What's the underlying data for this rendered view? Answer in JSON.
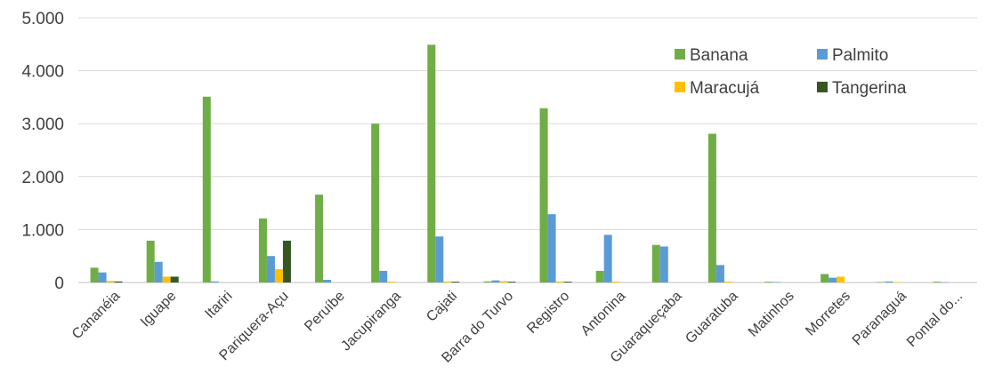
{
  "chart_data": {
    "type": "bar",
    "categories": [
      "Cananéia",
      "Iguape",
      "Itariri",
      "Pariquera-Açu",
      "Peruíbe",
      "Jacupiranga",
      "Cajati",
      "Barra do Turvo",
      "Registro",
      "Antonina",
      "Guaraqueçaba",
      "Guaratuba",
      "Matinhos",
      "Morretes",
      "Paranaguá",
      "Pontal do..."
    ],
    "series": [
      {
        "name": "Banana",
        "color": "#70ad47",
        "values": [
          280,
          790,
          3510,
          1210,
          1660,
          3000,
          4490,
          20,
          3290,
          220,
          710,
          2810,
          15,
          160,
          10,
          15
        ]
      },
      {
        "name": "Palmito",
        "color": "#5b9bd5",
        "values": [
          190,
          390,
          20,
          500,
          50,
          220,
          870,
          40,
          1290,
          900,
          680,
          330,
          10,
          90,
          20,
          5
        ]
      },
      {
        "name": "Maracujá",
        "color": "#ffc000",
        "values": [
          30,
          110,
          0,
          250,
          0,
          15,
          20,
          25,
          20,
          15,
          0,
          15,
          0,
          110,
          10,
          0
        ]
      },
      {
        "name": "Tangerina",
        "color": "#375623",
        "values": [
          20,
          110,
          0,
          790,
          0,
          0,
          15,
          15,
          15,
          0,
          0,
          0,
          0,
          0,
          0,
          0
        ]
      }
    ],
    "y_ticks": [
      "0",
      "1.000",
      "2.000",
      "3.000",
      "4.000",
      "5.000"
    ],
    "ylim": [
      0,
      5000
    ],
    "grid": true,
    "legend_placement": "top-right"
  }
}
